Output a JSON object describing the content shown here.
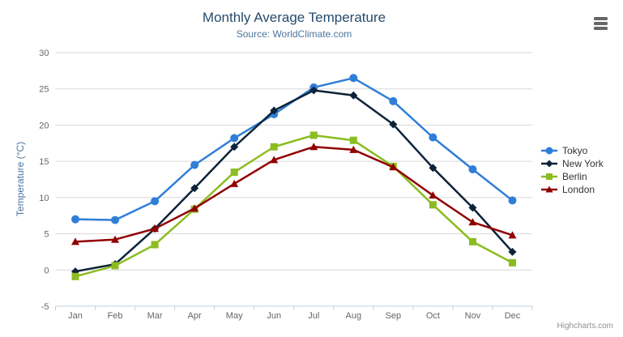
{
  "credits": "Highcharts.com",
  "export_menu": {
    "icon": "hamburger-menu-icon"
  },
  "chart_data": {
    "type": "line",
    "title": "Monthly Average Temperature",
    "subtitle": "Source: WorldClimate.com",
    "categories": [
      "Jan",
      "Feb",
      "Mar",
      "Apr",
      "May",
      "Jun",
      "Jul",
      "Aug",
      "Sep",
      "Oct",
      "Nov",
      "Dec"
    ],
    "xlabel": "",
    "ylabel": "Temperature (°C)",
    "ylim": [
      -5,
      30
    ],
    "ytick_interval": 5,
    "grid": true,
    "legend_position": "right",
    "series": [
      {
        "name": "Tokyo",
        "color": "#2f7ed8",
        "marker": "circle",
        "values": [
          7.0,
          6.9,
          9.5,
          14.5,
          18.2,
          21.5,
          25.2,
          26.5,
          23.3,
          18.3,
          13.9,
          9.6
        ]
      },
      {
        "name": "New York",
        "color": "#0d233a",
        "marker": "diamond",
        "values": [
          -0.2,
          0.8,
          5.7,
          11.3,
          17.0,
          22.0,
          24.8,
          24.1,
          20.1,
          14.1,
          8.6,
          2.5
        ]
      },
      {
        "name": "Berlin",
        "color": "#8bbc21",
        "marker": "square",
        "values": [
          -0.9,
          0.6,
          3.5,
          8.4,
          13.5,
          17.0,
          18.6,
          17.9,
          14.3,
          9.0,
          3.9,
          1.0
        ]
      },
      {
        "name": "London",
        "color": "#910000",
        "marker": "triangle",
        "values": [
          3.9,
          4.2,
          5.7,
          8.5,
          11.9,
          15.2,
          17.0,
          16.6,
          14.2,
          10.3,
          6.6,
          4.8
        ]
      }
    ],
    "colors": {
      "title": "#274b6d",
      "subtitle": "#4d759e",
      "axis_title": "#4d759e",
      "tick_label": "#666666",
      "grid_line": "#d8d8d8",
      "axis_line": "#c0d0e0",
      "legend_text": "#333333",
      "credits": "#909090",
      "export_icon": "#666666",
      "background": "#ffffff"
    }
  }
}
